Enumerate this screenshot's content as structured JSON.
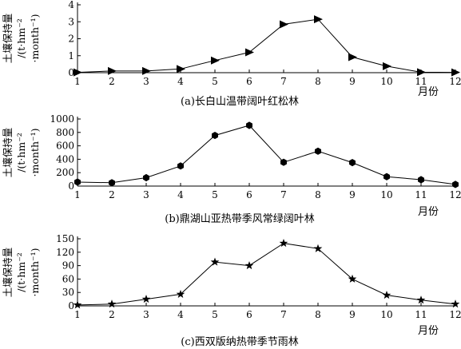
{
  "chart_data": [
    {
      "type": "line",
      "caption": "(a)长白山温带阔叶红松林",
      "ylabel": [
        "土壤保持量",
        "/(t·hm⁻²",
        "·month⁻¹)"
      ],
      "xlabel": "月份",
      "x": [
        1,
        2,
        3,
        4,
        5,
        6,
        7,
        8,
        9,
        10,
        11,
        12
      ],
      "xlim": [
        1,
        12
      ],
      "ylim": [
        0,
        4
      ],
      "yticks": [
        0,
        1,
        2,
        3,
        4
      ],
      "marker": "triangle-right",
      "series": [
        {
          "values": [
            0.02,
            0.1,
            0.1,
            0.22,
            0.72,
            1.2,
            2.85,
            3.15,
            0.92,
            0.38,
            0.03,
            0.02
          ]
        }
      ]
    },
    {
      "type": "line",
      "caption": "(b)鼎湖山亚热带季风常绿阔叶林",
      "ylabel": [
        "土壤保持量",
        "/(t·hm⁻²",
        "·month⁻¹)"
      ],
      "xlabel": "月份",
      "x": [
        1,
        2,
        3,
        4,
        5,
        6,
        7,
        8,
        9,
        10,
        11,
        12
      ],
      "xlim": [
        1,
        12
      ],
      "ylim": [
        0,
        1000
      ],
      "yticks": [
        0,
        200,
        400,
        600,
        800,
        1000
      ],
      "marker": "hexagon",
      "series": [
        {
          "values": [
            60,
            50,
            125,
            300,
            755,
            905,
            355,
            520,
            350,
            140,
            95,
            25
          ]
        }
      ]
    },
    {
      "type": "line",
      "caption": "(c)西双版纳热带季节雨林",
      "ylabel": [
        "土壤保持量",
        "/(t·hm⁻²",
        "·month⁻¹)"
      ],
      "xlabel": "月份",
      "x": [
        1,
        2,
        3,
        4,
        5,
        6,
        7,
        8,
        9,
        10,
        11,
        12
      ],
      "xlim": [
        1,
        12
      ],
      "ylim": [
        0,
        150
      ],
      "yticks": [
        0,
        30,
        60,
        90,
        120,
        150
      ],
      "marker": "star",
      "series": [
        {
          "values": [
            2,
            4,
            15,
            26,
            98,
            90,
            140,
            128,
            60,
            24,
            13,
            4
          ]
        }
      ]
    }
  ]
}
